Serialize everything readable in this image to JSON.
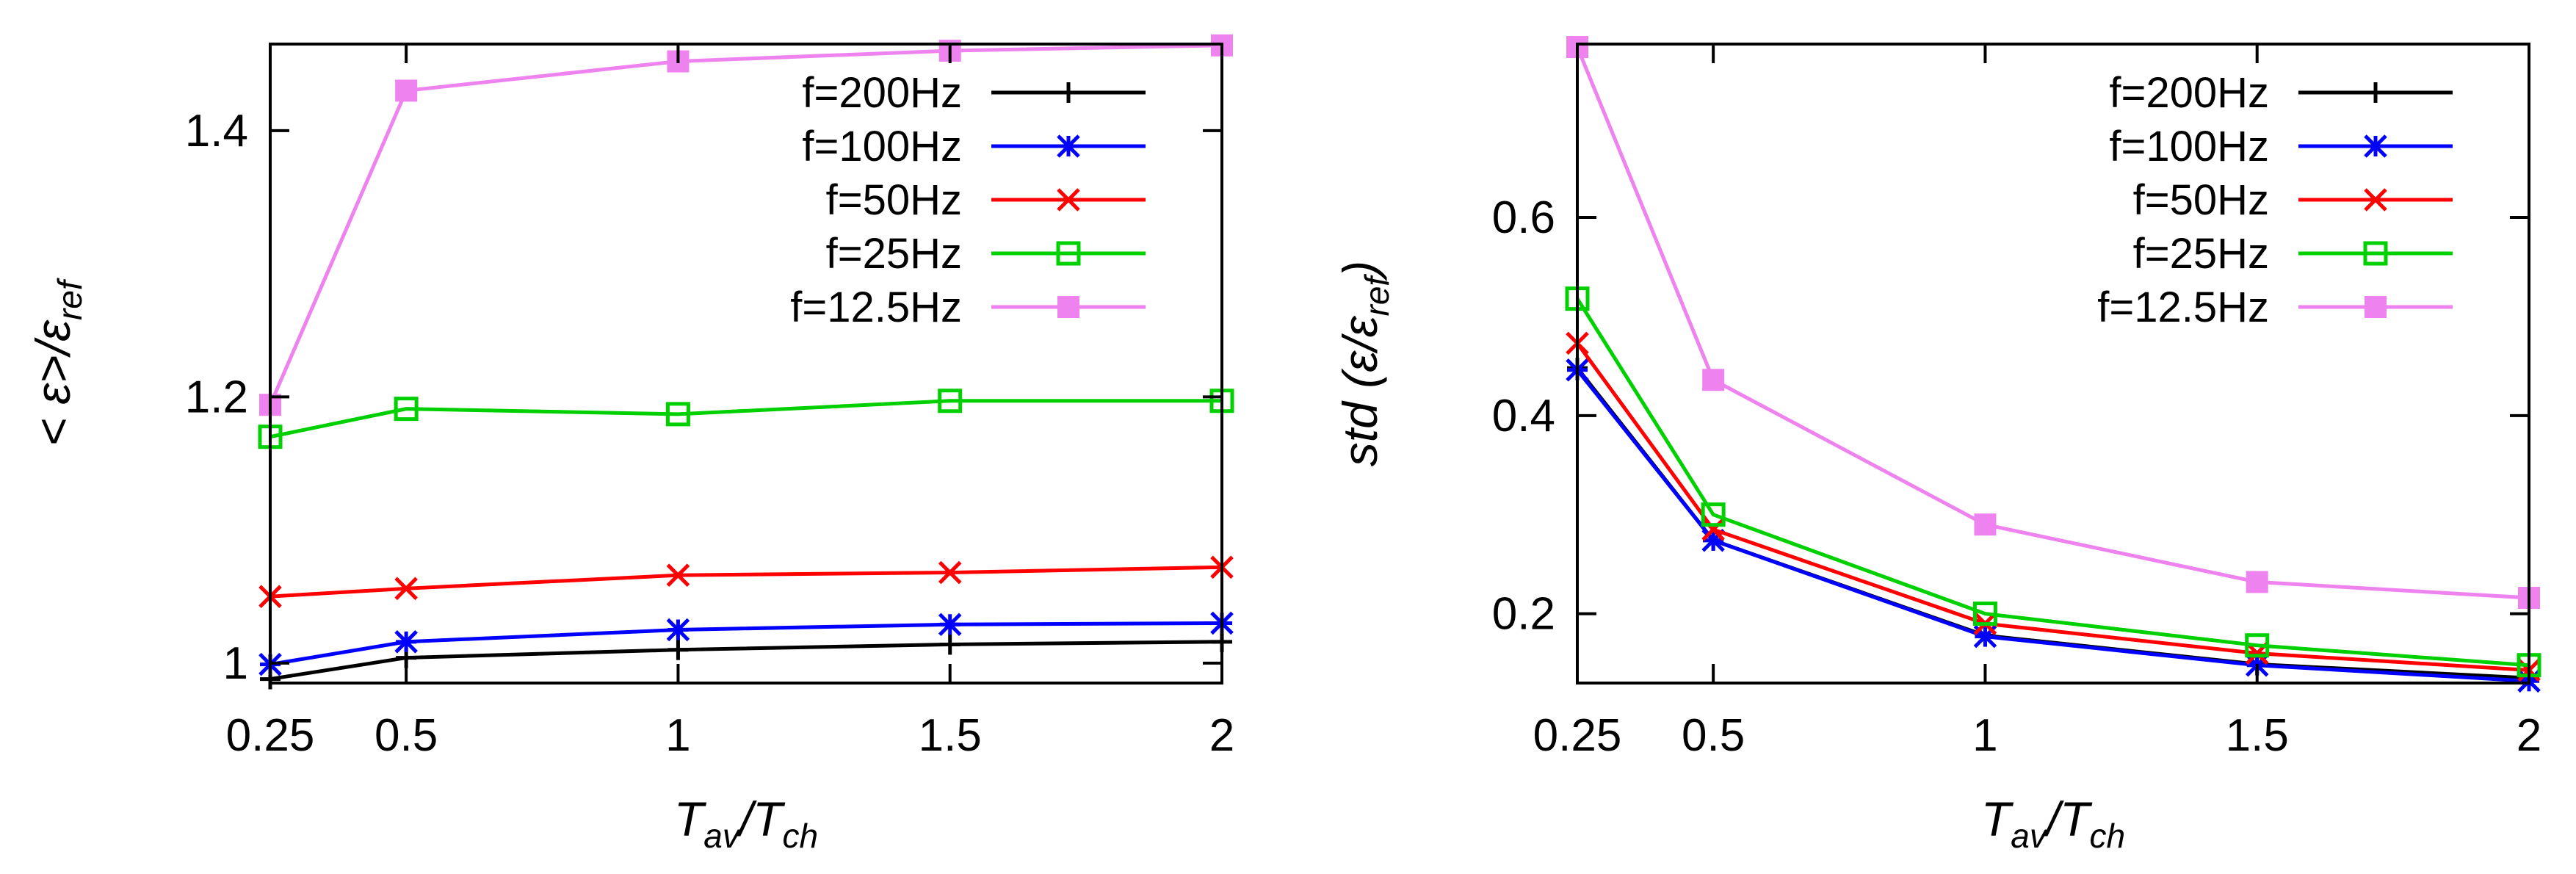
{
  "chart_data": [
    {
      "type": "line",
      "ylabel": {
        "prefix": "< ε>/ε",
        "sub": "ref"
      },
      "xlabel": {
        "a": "T",
        "a_sub": "av",
        "b": "/T",
        "b_sub": "ch"
      },
      "x": [
        0.25,
        0.5,
        1,
        1.5,
        2
      ],
      "x_tick_labels": [
        "0.25",
        "0.5",
        "1",
        "1.5",
        "2"
      ],
      "xlim": [
        0.25,
        2
      ],
      "ylim": [
        0.985,
        1.465
      ],
      "y_ticks": [
        1.0,
        1.2,
        1.4
      ],
      "y_tick_labels": [
        "1",
        "1.2",
        "1.4"
      ],
      "legend_position": "top-right",
      "series": [
        {
          "name": "f=200Hz",
          "color": "#000000",
          "marker": "plus",
          "values": [
            0.988,
            1.004,
            1.01,
            1.014,
            1.016
          ]
        },
        {
          "name": "f=100Hz",
          "color": "#0000ff",
          "marker": "star",
          "values": [
            0.999,
            1.016,
            1.025,
            1.029,
            1.03
          ]
        },
        {
          "name": "f=50Hz",
          "color": "#ff0000",
          "marker": "cross",
          "values": [
            1.05,
            1.056,
            1.066,
            1.068,
            1.072
          ]
        },
        {
          "name": "f=25Hz",
          "color": "#00d000",
          "marker": "open-square",
          "values": [
            1.17,
            1.191,
            1.187,
            1.197,
            1.197
          ]
        },
        {
          "name": "f=12.5Hz",
          "color": "#ee82ee",
          "marker": "filled-square",
          "values": [
            1.194,
            1.43,
            1.452,
            1.46,
            1.464
          ]
        }
      ]
    },
    {
      "type": "line",
      "ylabel": {
        "prefix": "std (ε/ε",
        "sub": "ref",
        "suffix": ")"
      },
      "xlabel": {
        "a": "T",
        "a_sub": "av",
        "b": "/T",
        "b_sub": "ch"
      },
      "x": [
        0.25,
        0.5,
        1,
        1.5,
        2
      ],
      "x_tick_labels": [
        "0.25",
        "0.5",
        "1",
        "1.5",
        "2"
      ],
      "xlim": [
        0.25,
        2
      ],
      "ylim": [
        0.13,
        0.775
      ],
      "y_ticks": [
        0.2,
        0.4,
        0.6
      ],
      "y_tick_labels": [
        "0.2",
        "0.4",
        "0.6"
      ],
      "legend_position": "top-right",
      "series": [
        {
          "name": "f=200Hz",
          "color": "#000000",
          "marker": "plus",
          "values": [
            0.448,
            0.274,
            0.178,
            0.149,
            0.135
          ]
        },
        {
          "name": "f=100Hz",
          "color": "#0000ff",
          "marker": "star",
          "values": [
            0.446,
            0.274,
            0.177,
            0.148,
            0.132
          ]
        },
        {
          "name": "f=50Hz",
          "color": "#ff0000",
          "marker": "cross",
          "values": [
            0.473,
            0.285,
            0.19,
            0.16,
            0.143
          ]
        },
        {
          "name": "f=25Hz",
          "color": "#00d000",
          "marker": "open-square",
          "values": [
            0.518,
            0.3,
            0.2,
            0.168,
            0.148
          ]
        },
        {
          "name": "f=12.5Hz",
          "color": "#ee82ee",
          "marker": "filled-square",
          "values": [
            0.772,
            0.436,
            0.29,
            0.232,
            0.216
          ]
        }
      ]
    }
  ]
}
